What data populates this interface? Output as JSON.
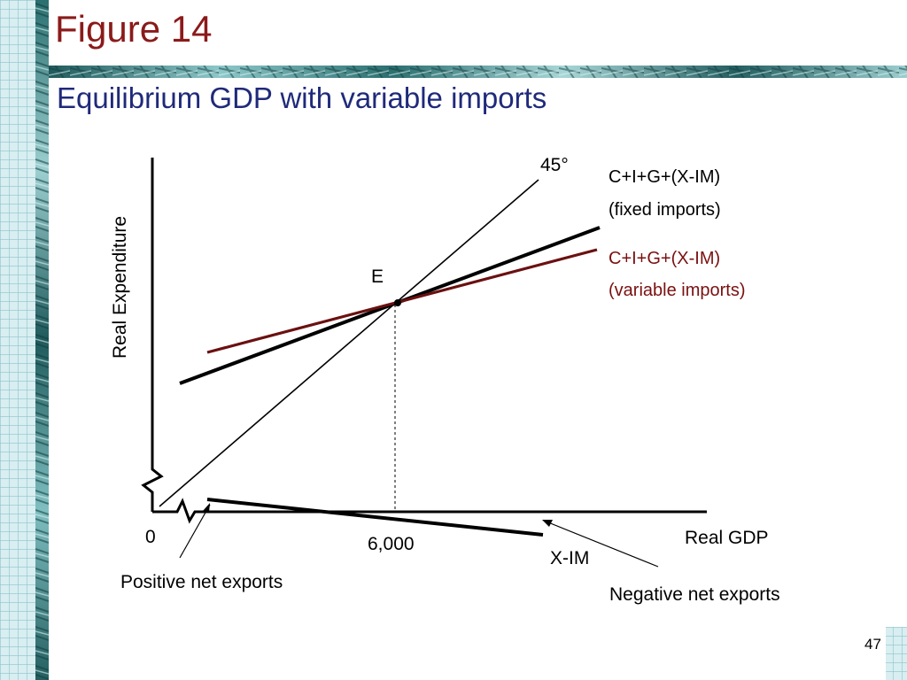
{
  "slide": {
    "title": "Figure 14",
    "subtitle": "Equilibrium GDP with variable imports",
    "page_number": "47"
  },
  "diagram": {
    "y_axis_label": "Real Expenditure",
    "x_axis_label": "Real GDP",
    "origin_label": "0",
    "angle_label": "45°",
    "equilibrium_label": "E",
    "equilibrium_x_label": "6,000",
    "fixed_line_label_1": "C+I+G+(X-IM)",
    "fixed_line_label_2": "(fixed imports)",
    "variable_line_label_1": "C+I+G+(X-IM)",
    "variable_line_label_2": "(variable imports)",
    "net_exports_line_label": "X-IM",
    "positive_annotation": "Positive net exports",
    "negative_annotation": "Negative net exports"
  },
  "colors": {
    "title": "#8b1a1a",
    "subtitle": "#1f2a7a",
    "variable_line": "#6b1010",
    "variable_label": "#7a1010",
    "lines": "#000000",
    "grid_band": "#b8dde3",
    "texture_band": "#1f5a5c"
  }
}
